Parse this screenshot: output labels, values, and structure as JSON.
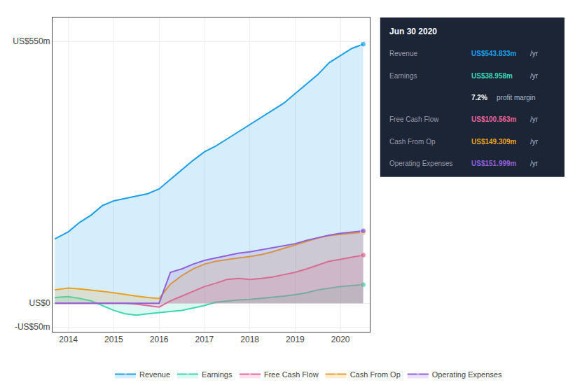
{
  "chart_data": {
    "type": "area",
    "x": [
      2013.7,
      2014.0,
      2014.25,
      2014.5,
      2014.75,
      2015.0,
      2015.25,
      2015.5,
      2015.75,
      2016.0,
      2016.25,
      2016.5,
      2016.75,
      2017.0,
      2017.25,
      2017.5,
      2017.75,
      2018.0,
      2018.25,
      2018.5,
      2018.75,
      2019.0,
      2019.25,
      2019.5,
      2019.75,
      2020.0,
      2020.25,
      2020.5
    ],
    "series": [
      {
        "name": "Revenue",
        "color": "#1ba0e8",
        "values": [
          135,
          150,
          170,
          185,
          205,
          215,
          220,
          225,
          230,
          240,
          260,
          280,
          300,
          318,
          330,
          345,
          360,
          375,
          390,
          405,
          420,
          440,
          460,
          480,
          505,
          520,
          535,
          544
        ]
      },
      {
        "name": "Earnings",
        "color": "#3dd6b5",
        "values": [
          12,
          14,
          10,
          5,
          -5,
          -15,
          -22,
          -25,
          -22,
          -20,
          -18,
          -15,
          -10,
          -5,
          2,
          5,
          7,
          8,
          10,
          12,
          15,
          18,
          22,
          28,
          32,
          35,
          37,
          39
        ]
      },
      {
        "name": "Free Cash Flow",
        "color": "#e8649a",
        "values": [
          0,
          0,
          0,
          0,
          0,
          0,
          0,
          -2,
          -5,
          -8,
          5,
          15,
          25,
          35,
          42,
          50,
          52,
          50,
          52,
          55,
          60,
          65,
          72,
          80,
          88,
          92,
          97,
          101
        ]
      },
      {
        "name": "Cash From Op",
        "color": "#e8a020",
        "values": [
          28,
          32,
          30,
          28,
          25,
          22,
          18,
          15,
          12,
          10,
          40,
          58,
          72,
          82,
          88,
          92,
          95,
          98,
          102,
          108,
          115,
          122,
          130,
          137,
          142,
          145,
          147,
          149
        ]
      },
      {
        "name": "Operating Expenses",
        "color": "#9060d8",
        "values": [
          0,
          0,
          0,
          0,
          0,
          0,
          0,
          0,
          0,
          0,
          65,
          72,
          82,
          90,
          95,
          100,
          105,
          108,
          112,
          116,
          120,
          125,
          132,
          138,
          143,
          147,
          150,
          152
        ]
      }
    ],
    "xlim": [
      2013.65,
      2020.65
    ],
    "xticks": [
      2014,
      2015,
      2016,
      2017,
      2018,
      2019,
      2020
    ],
    "ylim": [
      -60,
      600
    ],
    "yticks": [
      {
        "value": -50,
        "label": "-US$50m"
      },
      {
        "value": 0,
        "label": "US$0"
      },
      {
        "value": 550,
        "label": "US$550m"
      }
    ],
    "grid": true,
    "legend": "bottom",
    "annotations": [
      {
        "text": "Jun 30 2020"
      },
      {
        "label": "Revenue",
        "value": "US$543.833m",
        "unit": "/yr",
        "color": "#1ba0e8"
      },
      {
        "label": "Earnings",
        "value": "US$38.958m",
        "unit": "/yr",
        "color": "#3dd6b5"
      },
      {
        "value": "7.2%",
        "unit": "profit margin",
        "color": "#ffffff"
      },
      {
        "label": "Free Cash Flow",
        "value": "US$100.563m",
        "unit": "/yr",
        "color": "#e8649a"
      },
      {
        "label": "Cash From Op",
        "value": "US$149.309m",
        "unit": "/yr",
        "color": "#e8a020"
      },
      {
        "label": "Operating Expenses",
        "value": "US$151.999m",
        "unit": "/yr",
        "color": "#9060d8"
      }
    ]
  }
}
